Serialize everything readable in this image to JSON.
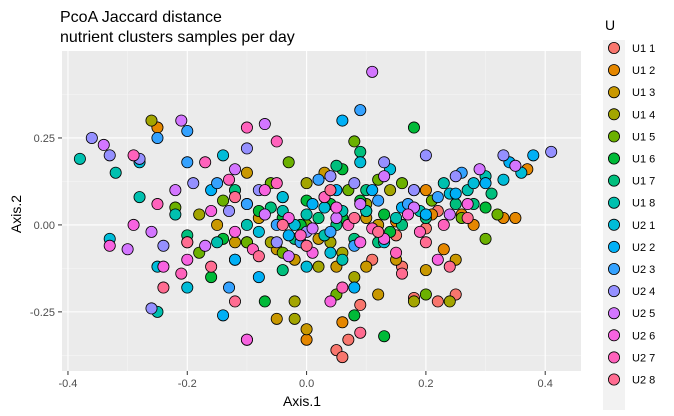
{
  "chart_data": {
    "type": "scatter",
    "title": "PcoA Jaccard distance",
    "subtitle": "nutrient clusters samples per day",
    "xlabel": "Axis.1",
    "ylabel": "Axis.2",
    "xlim": [
      -0.41,
      0.46
    ],
    "ylim": [
      -0.42,
      0.5
    ],
    "xticks": [
      -0.4,
      -0.2,
      0.0,
      0.2,
      0.4
    ],
    "xtick_labels": [
      "-0.4",
      "-0.2",
      "0.0",
      "0.2",
      "0.4"
    ],
    "yticks": [
      -0.25,
      0.0,
      0.25
    ],
    "ytick_labels": [
      "-0.25",
      "0.00",
      "0.25"
    ],
    "grid": true,
    "legend_position": "right",
    "legend_title": "U",
    "series": [
      {
        "name": "U1 1",
        "color": "#F8766D",
        "points": [
          [
            0.05,
            -0.36
          ],
          [
            0.06,
            -0.38
          ],
          [
            0.07,
            -0.33
          ],
          [
            0.11,
            -0.1
          ],
          [
            0.16,
            -0.12
          ],
          [
            0.18,
            -0.21
          ],
          [
            0.22,
            -0.22
          ],
          [
            0.25,
            -0.2
          ],
          [
            0.15,
            -0.03
          ],
          [
            0.22,
            0.04
          ],
          [
            0.2,
            -0.01
          ],
          [
            0.09,
            -0.23
          ]
        ]
      },
      {
        "name": "U1 2",
        "color": "#E58700",
        "points": [
          [
            0.26,
            0.03
          ],
          [
            0.28,
            0.0
          ],
          [
            0.33,
            0.02
          ],
          [
            0.35,
            0.02
          ],
          [
            0.37,
            0.16
          ],
          [
            0.2,
            0.1
          ],
          [
            0.21,
            0.03
          ],
          [
            0.23,
            -0.07
          ],
          [
            0.15,
            0.01
          ],
          [
            -0.25,
            0.28
          ],
          [
            0.0,
            -0.33
          ],
          [
            0.06,
            -0.28
          ],
          [
            -0.1,
            -0.05
          ]
        ]
      },
      {
        "name": "U1 3",
        "color": "#C99800",
        "points": [
          [
            -0.15,
            0.0
          ],
          [
            -0.12,
            -0.05
          ],
          [
            -0.08,
            0.02
          ],
          [
            -0.05,
            -0.07
          ],
          [
            -0.02,
            -0.1
          ],
          [
            0.02,
            -0.04
          ],
          [
            0.05,
            -0.12
          ],
          [
            0.1,
            -0.12
          ],
          [
            0.12,
            0.0
          ],
          [
            0.15,
            -0.1
          ],
          [
            0.2,
            -0.13
          ],
          [
            0.25,
            -0.1
          ],
          [
            0.1,
            0.02
          ],
          [
            -0.1,
            0.15
          ],
          [
            0.03,
            0.15
          ],
          [
            0.0,
            -0.3
          ],
          [
            -0.05,
            -0.27
          ],
          [
            0.12,
            -0.2
          ]
        ]
      },
      {
        "name": "U1 4",
        "color": "#A3A500",
        "points": [
          [
            -0.18,
            0.03
          ],
          [
            -0.1,
            0.06
          ],
          [
            -0.06,
            -0.05
          ],
          [
            -0.02,
            -0.22
          ],
          [
            0.02,
            -0.12
          ],
          [
            0.06,
            -0.08
          ],
          [
            0.08,
            -0.15
          ],
          [
            0.1,
            0.06
          ],
          [
            0.14,
            0.1
          ],
          [
            0.18,
            -0.22
          ],
          [
            0.24,
            -0.22
          ],
          [
            -0.04,
            0.08
          ],
          [
            0.0,
            0.12
          ],
          [
            -0.26,
            0.3
          ],
          [
            -0.02,
            -0.27
          ],
          [
            0.04,
            -0.05
          ],
          [
            -0.12,
            -0.1
          ]
        ]
      },
      {
        "name": "U1 5",
        "color": "#6BB100",
        "points": [
          [
            -0.22,
            0.05
          ],
          [
            -0.14,
            0.07
          ],
          [
            -0.1,
            -0.05
          ],
          [
            -0.06,
            0.12
          ],
          [
            -0.04,
            -0.08
          ],
          [
            0.0,
            0.0
          ],
          [
            0.03,
            0.08
          ],
          [
            0.07,
            0.1
          ],
          [
            0.12,
            0.13
          ],
          [
            0.16,
            0.12
          ],
          [
            0.21,
            0.07
          ],
          [
            0.26,
            0.02
          ],
          [
            0.3,
            -0.04
          ],
          [
            0.32,
            0.03
          ],
          [
            -0.18,
            -0.08
          ],
          [
            0.05,
            -0.2
          ],
          [
            0.08,
            0.24
          ],
          [
            -0.03,
            0.18
          ],
          [
            0.2,
            -0.2
          ],
          [
            0.1,
            0.04
          ]
        ]
      },
      {
        "name": "U1 6",
        "color": "#00BA38",
        "points": [
          [
            -0.14,
            -0.04
          ],
          [
            -0.08,
            0.04
          ],
          [
            -0.04,
            0.02
          ],
          [
            0.0,
            0.07
          ],
          [
            0.04,
            0.06
          ],
          [
            0.06,
            0.02
          ],
          [
            0.09,
            0.07
          ],
          [
            0.13,
            0.03
          ],
          [
            0.18,
            0.28
          ],
          [
            0.14,
            -0.02
          ],
          [
            -0.07,
            -0.22
          ],
          [
            -0.16,
            -0.15
          ],
          [
            0.06,
            0.16
          ],
          [
            0.3,
            0.05
          ],
          [
            -0.1,
            -0.33
          ],
          [
            0.13,
            -0.32
          ],
          [
            -0.01,
            0.0
          ],
          [
            0.08,
            -0.26
          ]
        ]
      },
      {
        "name": "U1 7",
        "color": "#00BF7D",
        "points": [
          [
            -0.12,
            0.1
          ],
          [
            -0.06,
            0.05
          ],
          [
            -0.02,
            -0.04
          ],
          [
            0.02,
            0.02
          ],
          [
            0.05,
            0.0
          ],
          [
            0.08,
            -0.04
          ],
          [
            0.12,
            -0.05
          ],
          [
            0.16,
            0.0
          ],
          [
            0.2,
            0.02
          ],
          [
            0.25,
            0.06
          ],
          [
            0.28,
            0.06
          ],
          [
            0.31,
            0.09
          ],
          [
            -0.04,
            -0.13
          ],
          [
            0.1,
            0.1
          ],
          [
            0.09,
            0.21
          ],
          [
            -0.2,
            -0.03
          ],
          [
            0.05,
            0.17
          ],
          [
            0.0,
            -0.06
          ]
        ]
      },
      {
        "name": "U1 8",
        "color": "#00C0AF",
        "points": [
          [
            -0.38,
            0.19
          ],
          [
            -0.32,
            0.15
          ],
          [
            -0.28,
            0.08
          ],
          [
            -0.22,
            0.03
          ],
          [
            -0.15,
            -0.05
          ],
          [
            -0.1,
            0.0
          ],
          [
            -0.04,
            0.04
          ],
          [
            0.0,
            0.03
          ],
          [
            0.03,
            -0.03
          ],
          [
            0.06,
            0.04
          ],
          [
            0.1,
            0.04
          ],
          [
            0.15,
            0.02
          ],
          [
            0.19,
            0.04
          ],
          [
            0.23,
            0.12
          ],
          [
            0.27,
            0.1
          ],
          [
            0.3,
            0.14
          ],
          [
            -0.25,
            -0.25
          ],
          [
            0.06,
            -0.1
          ]
        ]
      },
      {
        "name": "U2 1",
        "color": "#00BCD8",
        "points": [
          [
            -0.33,
            -0.04
          ],
          [
            -0.25,
            -0.12
          ],
          [
            -0.2,
            -0.18
          ],
          [
            -0.14,
            0.2
          ],
          [
            -0.08,
            -0.02
          ],
          [
            -0.04,
            0.08
          ],
          [
            0.0,
            -0.12
          ],
          [
            0.04,
            -0.08
          ],
          [
            0.09,
            0.18
          ],
          [
            0.13,
            -0.05
          ],
          [
            0.18,
            0.1
          ],
          [
            0.24,
            0.09
          ],
          [
            0.28,
            0.12
          ],
          [
            0.33,
            0.13
          ],
          [
            0.36,
            0.15
          ],
          [
            -0.28,
            0.18
          ],
          [
            0.03,
            0.05
          ],
          [
            -0.02,
            0.0
          ],
          [
            0.14,
            0.16
          ]
        ]
      },
      {
        "name": "U2 2",
        "color": "#00B0F6",
        "points": [
          [
            -0.2,
            -0.05
          ],
          [
            -0.16,
            0.1
          ],
          [
            -0.12,
            -0.1
          ],
          [
            -0.08,
            -0.15
          ],
          [
            -0.03,
            -0.03
          ],
          [
            0.01,
            0.06
          ],
          [
            0.05,
            0.1
          ],
          [
            0.08,
            -0.18
          ],
          [
            0.11,
            0.1
          ],
          [
            0.16,
            0.05
          ],
          [
            0.2,
            0.03
          ],
          [
            0.25,
            0.09
          ],
          [
            0.3,
            0.12
          ],
          [
            0.34,
            0.18
          ],
          [
            0.38,
            0.2
          ],
          [
            -0.14,
            -0.26
          ],
          [
            0.06,
            0.3
          ]
        ]
      },
      {
        "name": "U2 3",
        "color": "#35A2FF",
        "points": [
          [
            -0.25,
            0.25
          ],
          [
            -0.2,
            0.18
          ],
          [
            -0.15,
            0.12
          ],
          [
            -0.1,
            0.06
          ],
          [
            -0.05,
            0.0
          ],
          [
            -0.01,
            -0.05
          ],
          [
            0.04,
            -0.02
          ],
          [
            0.08,
            -0.06
          ],
          [
            0.12,
            0.07
          ],
          [
            0.17,
            0.06
          ],
          [
            0.22,
            0.08
          ],
          [
            0.26,
            0.15
          ],
          [
            -0.2,
            0.27
          ],
          [
            0.09,
            0.33
          ],
          [
            -0.13,
            -0.18
          ],
          [
            0.02,
            0.13
          ]
        ]
      },
      {
        "name": "U2 4",
        "color": "#9590FF",
        "points": [
          [
            -0.36,
            0.25
          ],
          [
            -0.33,
            0.2
          ],
          [
            -0.28,
            0.19
          ],
          [
            -0.24,
            -0.06
          ],
          [
            -0.19,
            0.12
          ],
          [
            -0.13,
            0.04
          ],
          [
            -0.08,
            0.1
          ],
          [
            -0.05,
            -0.05
          ],
          [
            0.0,
            -0.02
          ],
          [
            0.04,
            0.14
          ],
          [
            0.08,
            0.12
          ],
          [
            0.13,
            0.18
          ],
          [
            0.18,
            0.1
          ],
          [
            0.25,
            0.14
          ],
          [
            0.33,
            0.2
          ],
          [
            0.41,
            0.21
          ],
          [
            -0.26,
            -0.24
          ],
          [
            -0.1,
            0.22
          ],
          [
            0.2,
            0.2
          ]
        ]
      },
      {
        "name": "U2 5",
        "color": "#D89000",
        "points": [
          []
        ]
      },
      {
        "name": "U2 5",
        "color": "#D376FF",
        "points": [
          [
            -0.34,
            0.23
          ],
          [
            -0.3,
            -0.07
          ],
          [
            -0.26,
            -0.02
          ],
          [
            -0.22,
            0.1
          ],
          [
            -0.17,
            -0.06
          ],
          [
            -0.12,
            0.16
          ],
          [
            -0.07,
            0.03
          ],
          [
            -0.03,
            -0.09
          ],
          [
            0.01,
            -0.01
          ],
          [
            0.05,
            0.02
          ],
          [
            0.09,
            0.06
          ],
          [
            0.13,
            0.14
          ],
          [
            0.18,
            0.05
          ],
          [
            0.24,
            0.03
          ],
          [
            0.29,
            0.16
          ],
          [
            0.35,
            0.17
          ],
          [
            -0.21,
            0.3
          ],
          [
            -0.07,
            0.29
          ],
          [
            0.11,
            0.44
          ]
        ]
      },
      {
        "name": "U2 6",
        "color": "#F763E0",
        "points": [
          [
            -0.33,
            -0.06
          ],
          [
            -0.29,
            0.0
          ],
          [
            -0.24,
            -0.12
          ],
          [
            -0.2,
            -0.1
          ],
          [
            -0.16,
            0.04
          ],
          [
            -0.12,
            -0.02
          ],
          [
            -0.07,
            0.1
          ],
          [
            -0.03,
            0.02
          ],
          [
            0.01,
            -0.08
          ],
          [
            0.05,
            0.05
          ],
          [
            0.09,
            -0.05
          ],
          [
            0.13,
            -0.04
          ],
          [
            0.17,
            0.03
          ],
          [
            0.22,
            -0.1
          ],
          [
            0.27,
            0.06
          ],
          [
            -0.1,
            -0.33
          ],
          [
            0.04,
            -0.22
          ]
        ]
      },
      {
        "name": "U2 7",
        "color": "#FF62BC",
        "points": [
          [
            -0.29,
            0.2
          ],
          [
            -0.25,
            0.06
          ],
          [
            -0.21,
            -0.14
          ],
          [
            -0.17,
            0.18
          ],
          [
            -0.13,
            0.13
          ],
          [
            -0.09,
            -0.07
          ],
          [
            -0.05,
            0.12
          ],
          [
            -0.01,
            -0.03
          ],
          [
            0.03,
            0.08
          ],
          [
            0.07,
            0.0
          ],
          [
            0.11,
            -0.01
          ],
          [
            0.15,
            -0.08
          ],
          [
            0.19,
            -0.02
          ],
          [
            0.23,
            0.0
          ],
          [
            -0.1,
            0.28
          ],
          [
            0.06,
            -0.18
          ],
          [
            -0.05,
            0.24
          ]
        ]
      },
      {
        "name": "U2 8",
        "color": "#FF6C91",
        "points": [
          [
            -0.24,
            -0.18
          ],
          [
            -0.2,
            -0.05
          ],
          [
            -0.16,
            -0.12
          ],
          [
            -0.12,
            0.08
          ],
          [
            -0.08,
            -0.09
          ],
          [
            -0.04,
            0.0
          ],
          [
            0.0,
            -0.06
          ],
          [
            0.04,
            0.1
          ],
          [
            0.08,
            0.02
          ],
          [
            0.12,
            -0.02
          ],
          [
            0.16,
            -0.14
          ],
          [
            0.2,
            -0.05
          ],
          [
            0.24,
            -0.12
          ],
          [
            0.27,
            0.02
          ],
          [
            -0.12,
            -0.22
          ],
          [
            0.09,
            -0.31
          ]
        ]
      }
    ]
  }
}
